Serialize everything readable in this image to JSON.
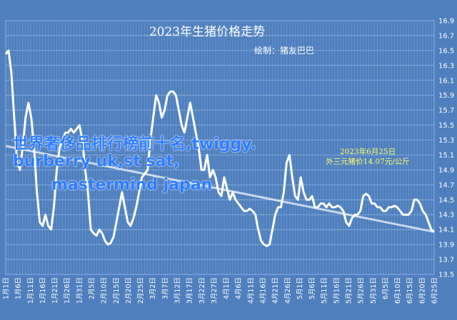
{
  "colors": {
    "background": "#4f7fbd",
    "line": "#ffffff",
    "grid": "#8eb3e3",
    "trend": "#dfe8f5",
    "annotation": "#ffff66",
    "overlay_text": "#2c7dff"
  },
  "overlay": {
    "line1": "世界奢侈品排行榜前十名,twiggy.",
    "line2": "burberry uk,st sat,",
    "line3": "mastermind japan"
  },
  "chart_data": {
    "type": "line",
    "title": "2023年生猪价格走势",
    "subtitle": "绘制：猪友巴巴",
    "annotation": {
      "line1": "2023年6月25日",
      "line2": "外三元猪价14.07元/公斤"
    },
    "ylim": [
      13.5,
      16.9
    ],
    "y_ticks": [
      13.5,
      13.7,
      13.9,
      14.1,
      14.3,
      14.5,
      14.7,
      14.9,
      15.1,
      15.3,
      15.5,
      15.7,
      15.9,
      16.1,
      16.3,
      16.5,
      16.7,
      16.9
    ],
    "grid": true,
    "x_tick_labels": [
      "1月1日",
      "1月6日",
      "1月11日",
      "1月16日",
      "1月21日",
      "1月26日",
      "1月31日",
      "2月5日",
      "2月10日",
      "2月15日",
      "2月20日",
      "2月25日",
      "3月2日",
      "3月7日",
      "3月12日",
      "3月17日",
      "3月22日",
      "3月27日",
      "4月1日",
      "4月6日",
      "4月11日",
      "4月16日",
      "4月21日",
      "4月26日",
      "5月1日",
      "5月6日",
      "5月11日",
      "5月16日",
      "5月21日",
      "5月26日",
      "5月31日",
      "6月5日",
      "6月10日",
      "6月15日",
      "6月20日",
      "6月25日"
    ],
    "trendline": [
      15.22,
      14.07
    ],
    "series": [
      {
        "values": [
          16.45,
          16.5,
          16.2,
          15.6,
          15.0,
          14.9,
          15.2,
          15.6,
          15.8,
          15.6,
          15.2,
          14.6,
          14.2,
          14.15,
          14.3,
          14.15,
          14.1,
          14.4,
          14.9,
          15.2,
          15.3,
          15.4,
          15.4,
          15.45,
          15.4,
          15.45,
          15.5,
          15.3,
          14.9,
          14.6,
          14.1,
          14.05,
          14.02,
          14.1,
          14.05,
          13.95,
          13.9,
          13.92,
          14.0,
          14.2,
          14.4,
          14.6,
          14.4,
          14.2,
          14.15,
          14.25,
          14.4,
          14.6,
          14.8,
          14.85,
          14.9,
          15.3,
          15.6,
          15.9,
          15.8,
          15.6,
          15.7,
          15.9,
          15.95,
          15.95,
          15.9,
          15.7,
          15.5,
          15.4,
          15.6,
          15.8,
          15.6,
          15.4,
          15.2,
          14.9,
          14.9,
          15.1,
          14.8,
          14.9,
          14.8,
          14.6,
          14.55,
          14.8,
          14.65,
          14.5,
          14.6,
          14.5,
          14.45,
          14.4,
          14.35,
          14.35,
          14.38,
          14.35,
          14.3,
          14.1,
          13.95,
          13.9,
          13.88,
          13.9,
          14.1,
          14.3,
          14.4,
          14.4,
          14.6,
          15.0,
          15.1,
          14.8,
          14.55,
          14.5,
          14.8,
          14.6,
          14.5,
          14.5,
          14.55,
          14.4,
          14.4,
          14.45,
          14.45,
          14.4,
          14.45,
          14.4,
          14.4,
          14.42,
          14.4,
          14.35,
          14.2,
          14.15,
          14.25,
          14.3,
          14.3,
          14.35,
          14.55,
          14.58,
          14.55,
          14.45,
          14.45,
          14.4,
          14.4,
          14.35,
          14.35,
          14.4,
          14.4,
          14.42,
          14.4,
          14.35,
          14.3,
          14.3,
          14.3,
          14.35,
          14.5,
          14.5,
          14.45,
          14.35,
          14.3,
          14.2,
          14.1,
          14.07
        ]
      }
    ]
  }
}
